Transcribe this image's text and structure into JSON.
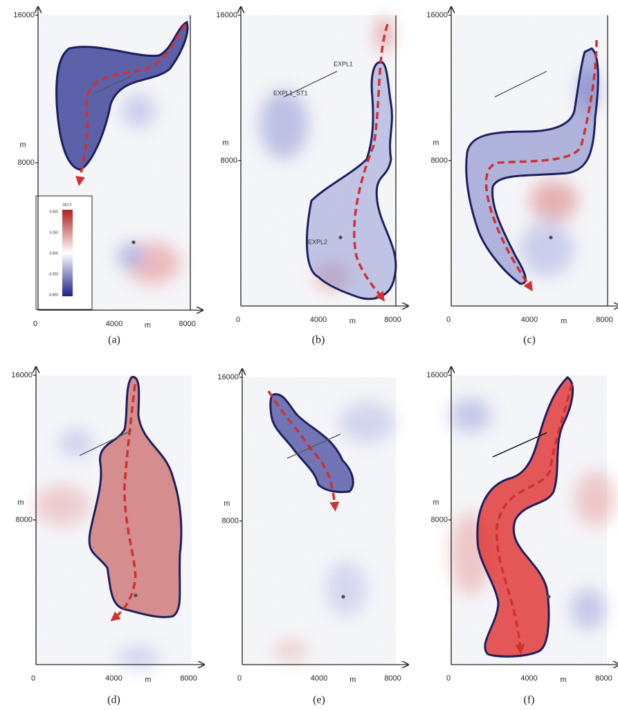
{
  "panels": [
    {
      "caption": "(a)",
      "y_ticks": [
        "16000",
        "8000"
      ],
      "y_label": "m",
      "x_ticks": [
        "0",
        "4000",
        "8000"
      ],
      "x_label": "m",
      "colorbar": {
        "title": "SECY",
        "labels": [
          "0.500",
          "0.250",
          "0.000",
          "-0.250",
          "-0.500"
        ]
      }
    },
    {
      "caption": "(b)",
      "y_ticks": [
        "16000",
        "8000"
      ],
      "y_label": "m",
      "x_ticks": [
        "0",
        "4000",
        "8000"
      ],
      "x_label": "m",
      "wells": [
        "EXPL1",
        "EXPL1_ST1",
        "EXPL2"
      ]
    },
    {
      "caption": "(c)",
      "y_ticks": [
        "16000",
        "8000"
      ],
      "y_label": "m",
      "x_ticks": [
        "0",
        "4000",
        "8000"
      ],
      "x_label": "m"
    },
    {
      "caption": "(d)",
      "y_ticks": [
        "16000",
        "8000"
      ],
      "y_label": "m",
      "x_ticks": [
        "0",
        "4000",
        "8000"
      ],
      "x_label": "m"
    },
    {
      "caption": "(e)",
      "y_ticks": [
        "16000",
        "8000"
      ],
      "y_label": "m",
      "x_ticks": [
        "0",
        "4000",
        "8000"
      ],
      "x_label": "m"
    },
    {
      "caption": "(f)",
      "y_ticks": [
        "16000",
        "8000"
      ],
      "y_label": "m",
      "x_ticks": [
        "0",
        "4000",
        "8000"
      ],
      "x_label": "m"
    }
  ]
}
